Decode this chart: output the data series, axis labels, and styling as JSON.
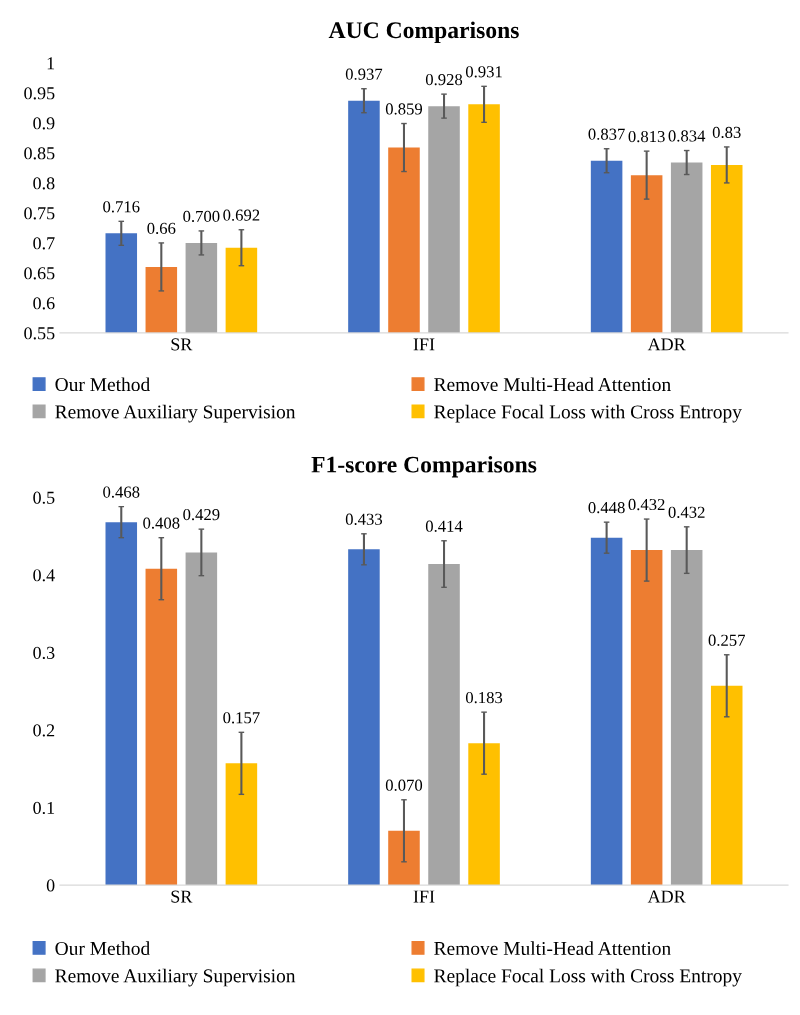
{
  "chart_data": [
    {
      "type": "bar",
      "title": "AUC Comparisons",
      "categories": [
        "SR",
        "IFI",
        "ADR"
      ],
      "ylim": [
        0.55,
        1
      ],
      "yticks": [
        {
          "value": 0.55,
          "label": "0.55"
        },
        {
          "value": 0.6,
          "label": "0.6"
        },
        {
          "value": 0.65,
          "label": "0.65"
        },
        {
          "value": 0.7,
          "label": "0.7"
        },
        {
          "value": 0.75,
          "label": "0.75"
        },
        {
          "value": 0.8,
          "label": "0.8"
        },
        {
          "value": 0.85,
          "label": "0.85"
        },
        {
          "value": 0.9,
          "label": "0.9"
        },
        {
          "value": 0.95,
          "label": "0.95"
        },
        {
          "value": 1,
          "label": "1"
        }
      ],
      "grid": false,
      "legend": "bottom",
      "series": [
        {
          "name": "Our Method",
          "color": "#4472c4",
          "values": [
            0.716,
            0.937,
            0.837
          ],
          "errors": [
            0.02,
            0.02,
            0.02
          ],
          "value_labels": [
            "0.716",
            "0.937",
            "0.837"
          ]
        },
        {
          "name": "Remove Multi-Head Attention",
          "color": "#ed7d31",
          "values": [
            0.66,
            0.859,
            0.813
          ],
          "errors": [
            0.04,
            0.04,
            0.04
          ],
          "value_labels": [
            "0.66",
            "0.859",
            "0.813"
          ]
        },
        {
          "name": "Remove Auxiliary Supervision",
          "color": "#a5a5a5",
          "values": [
            0.7,
            0.928,
            0.834
          ],
          "errors": [
            0.02,
            0.02,
            0.02
          ],
          "value_labels": [
            "0.700",
            "0.928",
            "0.834"
          ]
        },
        {
          "name": "Replace Focal Loss with Cross Entropy",
          "color": "#ffc000",
          "values": [
            0.692,
            0.931,
            0.83
          ],
          "errors": [
            0.03,
            0.03,
            0.03
          ],
          "value_labels": [
            "0.692",
            "0.931",
            "0.83"
          ]
        }
      ]
    },
    {
      "type": "bar",
      "title": "F1-score Comparisons",
      "categories": [
        "SR",
        "IFI",
        "ADR"
      ],
      "ylim": [
        0,
        0.5
      ],
      "yticks": [
        0,
        0.1,
        0.2,
        0.3,
        0.4,
        0.5
      ],
      "grid": false,
      "legend": "bottom",
      "series": [
        {
          "name": "Our Method",
          "color": "#4472c4",
          "values": [
            0.468,
            0.433,
            0.448
          ],
          "errors": [
            0.02,
            0.02,
            0.02
          ],
          "value_labels": [
            "0.468",
            "0.433",
            "0.448"
          ]
        },
        {
          "name": "Remove Multi-Head Attention",
          "color": "#ed7d31",
          "values": [
            0.408,
            0.07,
            0.432
          ],
          "errors": [
            0.04,
            0.04,
            0.04
          ],
          "value_labels": [
            "0.408",
            "0.070",
            "0.432"
          ]
        },
        {
          "name": "Remove Auxiliary Supervision",
          "color": "#a5a5a5",
          "values": [
            0.429,
            0.414,
            0.432
          ],
          "errors": [
            0.03,
            0.03,
            0.03
          ],
          "value_labels": [
            "0.429",
            "0.414",
            "0.432"
          ]
        },
        {
          "name": "Replace Focal Loss with Cross Entropy",
          "color": "#ffc000",
          "values": [
            0.157,
            0.183,
            0.257
          ],
          "errors": [
            0.04,
            0.04,
            0.04
          ],
          "value_labels": [
            "0.157",
            "0.183",
            "0.257"
          ]
        }
      ]
    }
  ]
}
